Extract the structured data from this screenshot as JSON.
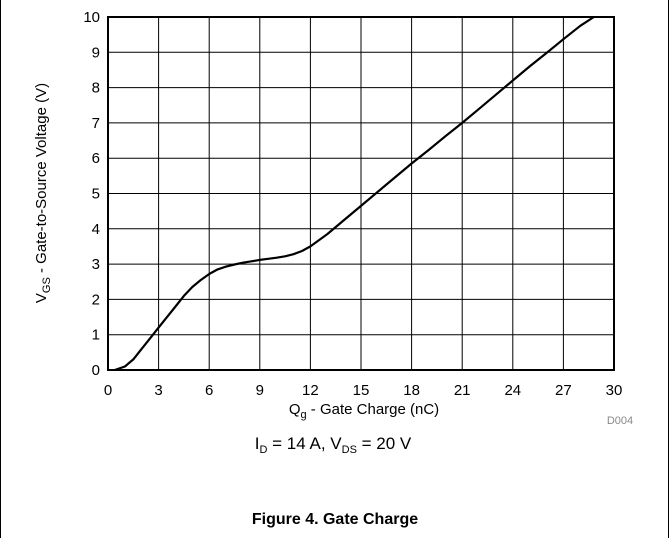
{
  "chart_data": {
    "type": "line",
    "title": "",
    "xlabel": {
      "main": "Q",
      "sub": "g",
      "rest": " - Gate Charge (nC)"
    },
    "ylabel": {
      "main": "V",
      "sub": "GS",
      "rest": " - Gate-to-Source Voltage (V)"
    },
    "xlim": [
      0,
      30
    ],
    "ylim": [
      0,
      10
    ],
    "xticks": [
      0,
      3,
      6,
      9,
      12,
      15,
      18,
      21,
      24,
      27,
      30
    ],
    "yticks": [
      0,
      1,
      2,
      3,
      4,
      5,
      6,
      7,
      8,
      9,
      10
    ],
    "grid": true,
    "series": [
      {
        "x": [
          0.4,
          1.0,
          1.5,
          2.0,
          2.5,
          3.0,
          3.5,
          4.0,
          4.5,
          5.0,
          5.5,
          6.0,
          6.5,
          7.0,
          7.5,
          8.0,
          8.5,
          9.0,
          9.5,
          10.0,
          10.5,
          11.0,
          11.5,
          12.0,
          13.0,
          14.0,
          15.0,
          16.0,
          17.0,
          18.0,
          19.0,
          20.0,
          21.0,
          22.0,
          23.0,
          24.0,
          25.0,
          26.0,
          27.0,
          28.0,
          28.8
        ],
        "y": [
          0.0,
          0.1,
          0.3,
          0.6,
          0.9,
          1.2,
          1.5,
          1.8,
          2.1,
          2.35,
          2.55,
          2.72,
          2.85,
          2.93,
          2.99,
          3.04,
          3.08,
          3.12,
          3.15,
          3.18,
          3.22,
          3.28,
          3.37,
          3.5,
          3.85,
          4.25,
          4.65,
          5.05,
          5.45,
          5.85,
          6.23,
          6.62,
          7.0,
          7.4,
          7.8,
          8.2,
          8.6,
          8.98,
          9.37,
          9.75,
          10.0
        ]
      }
    ]
  },
  "figure_code": "D004",
  "conditions": {
    "id_main": "I",
    "id_sub": "D",
    "id_val": " = 14 A, ",
    "vds_main": "V",
    "vds_sub": "DS",
    "vds_val": " = 20 V"
  },
  "caption": "Figure 4. Gate Charge"
}
